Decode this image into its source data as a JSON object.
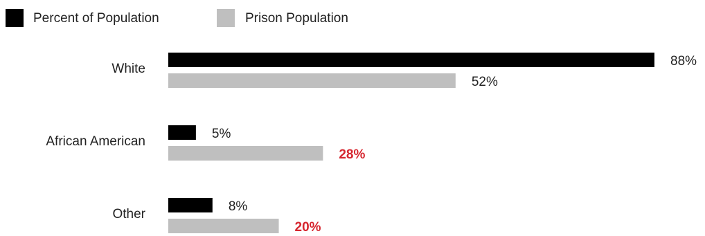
{
  "chart_data": {
    "type": "bar",
    "orientation": "horizontal",
    "categories": [
      "White",
      "African American",
      "Other"
    ],
    "series": [
      {
        "name": "Percent of Population",
        "color": "#000000",
        "values": [
          88,
          5,
          8
        ],
        "labels": [
          "88%",
          "5%",
          "8%"
        ],
        "highlight": [
          false,
          false,
          false
        ]
      },
      {
        "name": "Prison Population",
        "color": "#bfbfbf",
        "values": [
          52,
          28,
          20
        ],
        "labels": [
          "52%",
          "28%",
          "20%"
        ],
        "highlight": [
          false,
          true,
          true
        ]
      }
    ],
    "highlight_color": "#d6262f",
    "xlim": [
      0,
      88
    ],
    "legend_position": "top-left",
    "grid": false,
    "title": "",
    "xlabel": "",
    "ylabel": ""
  }
}
